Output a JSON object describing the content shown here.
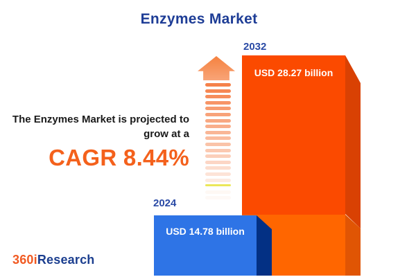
{
  "title": "Enzymes Market",
  "annotation": {
    "line1": "The Enzymes Market is projected to",
    "line2": "grow at a",
    "cagr": "CAGR 8.44%"
  },
  "logo": {
    "prefix": "360i",
    "suffix": "Research"
  },
  "chart_data": {
    "type": "bar",
    "title": "Enzymes Market",
    "categories": [
      "2024",
      "2032"
    ],
    "values": [
      14.78,
      28.27
    ],
    "unit": "USD billion",
    "value_labels": [
      "USD 14.78 billion",
      "USD 28.27 billion"
    ],
    "cagr_percent": 8.44,
    "bar_colors": [
      "#2e74e6",
      "#fb4a00"
    ],
    "orientation": "vertical-3d",
    "grid": false,
    "legend": "none"
  },
  "colors": {
    "title-blue": "#1e3d96",
    "year-label-blue": "#2a4aa5",
    "annotation-dark": "#1a1a1a",
    "accent-orange": "#f4611c",
    "bar-blue-front": "#2e74e6",
    "bar-blue-side": "#033084",
    "bar-orange-top-front": "#fb4a00",
    "bar-orange-top-side": "#d94103",
    "bar-orange-bottom-front": "#ff6600",
    "bar-orange-bottom-side": "#e05504",
    "arrow-orange": "#f5814a",
    "logo-orange": "#f15a22",
    "logo-blue": "#1b3e8f",
    "value-label-white": "#ffffff"
  },
  "arrow": {
    "dash_count": 20,
    "highlight_dash_index": 17,
    "highlight_color": "#e8e33c"
  }
}
